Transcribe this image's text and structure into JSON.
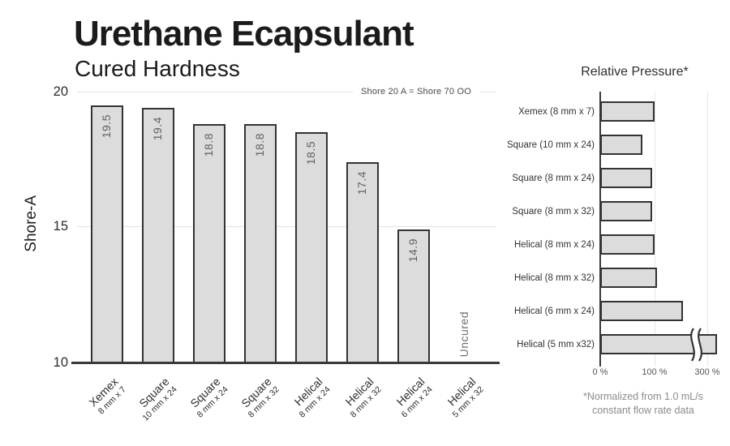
{
  "header": {
    "title": "Urethane Ecapsulant",
    "subtitle": "Cured Hardness"
  },
  "left_chart": {
    "y_axis_label": "Shore-A",
    "y_ticks": [
      "20",
      "15",
      "10"
    ],
    "annotation": "Shore 20 A = Shore 70 OO",
    "bars": [
      {
        "name": "Xemex",
        "size": "8 mm x 7",
        "value": 19.5,
        "label": "19.5"
      },
      {
        "name": "Square",
        "size": "10 mm x 24",
        "value": 19.4,
        "label": "19.4"
      },
      {
        "name": "Square",
        "size": "8 mm x 24",
        "value": 18.8,
        "label": "18.8"
      },
      {
        "name": "Square",
        "size": "8 mm x 32",
        "value": 18.8,
        "label": "18.8"
      },
      {
        "name": "Helical",
        "size": "8 mm x 24",
        "value": 18.5,
        "label": "18.5"
      },
      {
        "name": "Helical",
        "size": "8 mm x 32",
        "value": 17.4,
        "label": "17.4"
      },
      {
        "name": "Helical",
        "size": "6 mm x 24",
        "value": 14.9,
        "label": "14.9"
      },
      {
        "name": "Helical",
        "size": "5 mm x 32",
        "value": null,
        "label": "Uncured"
      }
    ]
  },
  "right_chart": {
    "title": "Relative Pressure*",
    "x_ticks": [
      "0 %",
      "100 %",
      "300 %"
    ],
    "rows": [
      {
        "label": "Xemex (8 mm x 7)",
        "value": 100,
        "axis_break": false
      },
      {
        "label": "Square (10 mm x 24)",
        "value": 77,
        "axis_break": false
      },
      {
        "label": "Square (8 mm x 24)",
        "value": 95,
        "axis_break": false
      },
      {
        "label": "Square (8 mm x 32)",
        "value": 95,
        "axis_break": false
      },
      {
        "label": "Helical (8 mm x 24)",
        "value": 100,
        "axis_break": false
      },
      {
        "label": "Helical (8 mm x 32)",
        "value": 105,
        "axis_break": false
      },
      {
        "label": "Helical (6 mm x 24)",
        "value": 152,
        "axis_break": false
      },
      {
        "label": "Helical (5 mm x32)",
        "value": 320,
        "axis_break": true
      }
    ],
    "footnote_line1": "*Normalized from 1.0 mL/s",
    "footnote_line2": "constant flow rate data"
  },
  "colors": {
    "bar_fill": "#dcdcdc",
    "bar_border": "#333333",
    "gridline": "#e2e2e2",
    "axis": "#3a3a3a",
    "title_text": "#1b1b1b",
    "value_label_text": "#606060",
    "footnote_text": "#8c8c8c"
  },
  "chart_data": [
    {
      "type": "bar",
      "title": "Urethane Ecapsulant",
      "subtitle": "Cured Hardness",
      "xlabel": "",
      "ylabel": "Shore-A",
      "ylim": [
        10,
        20
      ],
      "yticks": [
        20,
        15,
        10
      ],
      "categories": [
        "Xemex 8 mm x 7",
        "Square 10 mm x 24",
        "Square 8 mm x 24",
        "Square 8 mm x 32",
        "Helical 8 mm x 24",
        "Helical 8 mm x 32",
        "Helical 6 mm x 24",
        "Helical 5 mm x 32"
      ],
      "values": [
        19.5,
        19.4,
        18.8,
        18.8,
        18.5,
        17.4,
        14.9,
        null
      ],
      "annotations": [
        "Shore 20 A = Shore 70 OO",
        "Helical 5 mm x 32 has no bar; labeled 'Uncured'"
      ],
      "grid": "horizontal gridlines at 15 and 20",
      "legend": "none"
    },
    {
      "type": "bar",
      "orientation": "horizontal",
      "title": "Relative Pressure*",
      "categories": [
        "Xemex (8 mm x 7)",
        "Square (10 mm x 24)",
        "Square (8 mm x 24)",
        "Square (8 mm x 32)",
        "Helical (8 mm x 24)",
        "Helical (8 mm x 32)",
        "Helical (6 mm x 24)",
        "Helical (5 mm x32)"
      ],
      "values_percent": [
        100,
        77,
        95,
        95,
        100,
        105,
        152,
        320
      ],
      "xticks": [
        "0 %",
        "100 %",
        "300 %"
      ],
      "axis_break": "Helical (5 mm x32) bar drawn with a break symbol and extends past the 300 % tick",
      "footnote": "*Normalized from 1.0 mL/s constant flow rate data",
      "grid": "vertical gridlines at 100 % and 300 %",
      "legend": "none"
    }
  ]
}
